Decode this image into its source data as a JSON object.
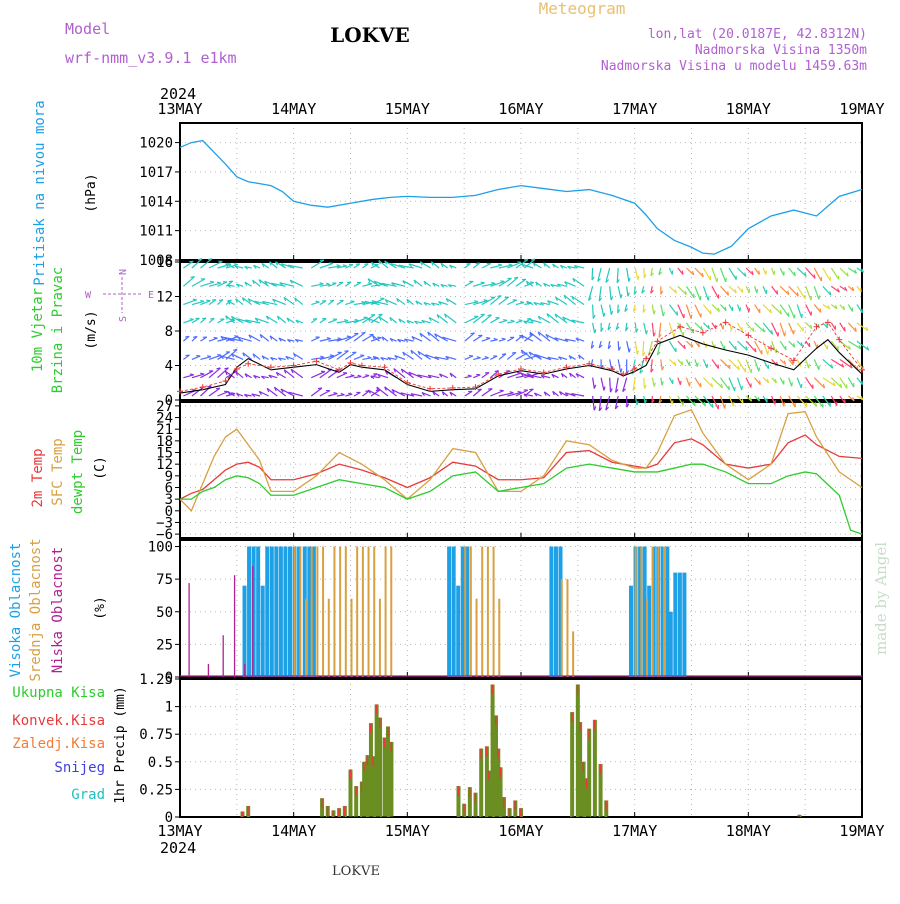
{
  "header": {
    "model_label": "Model",
    "model_name": "wrf-nmm_v3.9.1 e1km",
    "station": "LOKVE",
    "meteogram": "Meteogram",
    "lonlat": "lon,lat (20.0187E, 42.8312N)",
    "elev": "Nadmorska Visina 1350m",
    "elev_model": "Nadmorska Visina u modelu 1459.63m",
    "year_top": "2024",
    "year_bottom": "2024",
    "footer_station": "LOKVE",
    "credit": "made by Angel"
  },
  "colors": {
    "pressure": "#1ea0e6",
    "t2m": "#e83a3a",
    "sfc": "#d8a040",
    "dewpt": "#2ecc2e",
    "high_cloud": "#1ea0e6",
    "mid_cloud": "#d8a040",
    "low_cloud": "#b0208f",
    "precip_total": "#2ecc2e",
    "precip_conv": "#e83a3a",
    "precip_bar": "#6b8e23",
    "wind_speed": "#000000",
    "gust": "#e83a3a"
  },
  "chart_data": [
    {
      "type": "line",
      "panel": "pressure",
      "ylabel": "Pritisak na nivou mora",
      "unit": "(hPa)",
      "x_ticks": [
        "13MAY",
        "14MAY",
        "15MAY",
        "16MAY",
        "17MAY",
        "18MAY",
        "19MAY"
      ],
      "ylim": [
        1008,
        1022
      ],
      "y_ticks": [
        1008,
        1011,
        1014,
        1017,
        1020
      ],
      "series": [
        {
          "x": [
            0,
            0.1,
            0.2,
            0.3,
            0.4,
            0.5,
            0.6,
            0.7,
            0.8,
            0.9,
            1.0,
            1.15,
            1.3,
            1.5,
            1.7,
            1.85,
            2.0,
            2.2,
            2.4,
            2.6,
            2.8,
            3.0,
            3.2,
            3.4,
            3.6,
            3.8,
            4.0,
            4.1,
            4.2,
            4.35,
            4.5,
            4.6,
            4.7,
            4.85,
            5.0,
            5.2,
            5.4,
            5.6,
            5.8,
            6.0
          ],
          "values": [
            1019.5,
            1020,
            1020.2,
            1019,
            1017.8,
            1016.5,
            1016,
            1015.8,
            1015.6,
            1015,
            1014,
            1013.6,
            1013.4,
            1013.8,
            1014.2,
            1014.4,
            1014.5,
            1014.4,
            1014.4,
            1014.6,
            1015.2,
            1015.6,
            1015.3,
            1015.0,
            1015.2,
            1014.6,
            1013.8,
            1012.6,
            1011.2,
            1010.0,
            1009.3,
            1008.7,
            1008.6,
            1009.4,
            1011.2,
            1012.5,
            1013.1,
            1012.5,
            1014.5,
            1015.2
          ]
        }
      ]
    },
    {
      "type": "line",
      "panel": "wind",
      "ylabel": "10m Vjetar Brzina i Pravac",
      "unit": "(m/s)",
      "compass": {
        "n": "N",
        "s": "S",
        "e": "E",
        "w": "W"
      },
      "ylim": [
        0,
        16
      ],
      "y_ticks": [
        0,
        4,
        8,
        12,
        16
      ],
      "series": [
        {
          "name": "speed",
          "x": [
            0,
            0.2,
            0.4,
            0.5,
            0.6,
            0.8,
            1.0,
            1.2,
            1.4,
            1.5,
            1.6,
            1.8,
            2.0,
            2.2,
            2.4,
            2.6,
            2.8,
            3.0,
            3.2,
            3.4,
            3.6,
            3.8,
            3.9,
            4.0,
            4.1,
            4.2,
            4.4,
            4.6,
            4.8,
            5.0,
            5.2,
            5.4,
            5.6,
            5.7,
            5.8,
            6.0
          ],
          "values": [
            0.8,
            1.2,
            1.8,
            3.8,
            4.8,
            3.5,
            3.8,
            4.1,
            3.2,
            4.1,
            3.8,
            3.5,
            1.8,
            1.0,
            1.2,
            1.3,
            2.8,
            3.4,
            3.0,
            3.6,
            4.0,
            3.4,
            2.8,
            3.3,
            4.0,
            6.5,
            7.5,
            6.5,
            5.8,
            5.2,
            4.3,
            3.5,
            6.0,
            7.0,
            5.5,
            3.0
          ]
        },
        {
          "name": "gust",
          "x": [
            0,
            0.2,
            0.4,
            0.5,
            0.6,
            0.8,
            1.0,
            1.2,
            1.4,
            1.5,
            1.6,
            1.8,
            2.0,
            2.2,
            2.4,
            2.6,
            2.8,
            3.0,
            3.2,
            3.4,
            3.6,
            3.8,
            3.9,
            4.0,
            4.1,
            4.2,
            4.4,
            4.6,
            4.8,
            5.0,
            5.2,
            5.4,
            5.6,
            5.7,
            5.8,
            6.0
          ],
          "values": [
            1.0,
            1.5,
            2.2,
            3.6,
            4.2,
            3.8,
            4.0,
            4.5,
            3.5,
            4.3,
            4.0,
            3.8,
            2.0,
            1.3,
            1.4,
            1.5,
            3.0,
            3.6,
            3.2,
            3.8,
            4.2,
            3.6,
            3.0,
            3.6,
            4.8,
            6.8,
            8.5,
            7.8,
            9.0,
            7.5,
            6.0,
            4.6,
            8.5,
            9.0,
            7.0,
            3.5
          ]
        }
      ]
    },
    {
      "type": "line",
      "panel": "temperature",
      "ylabel": "2m Temp / SFC Temp / dewpt Temp",
      "unit": "(C)",
      "ylim": [
        -7,
        28
      ],
      "y_ticks": [
        -6,
        -3,
        0,
        3,
        6,
        9,
        12,
        15,
        18,
        21,
        24,
        27
      ],
      "series": [
        {
          "name": "2m Temp",
          "x": [
            0,
            0.1,
            0.2,
            0.3,
            0.4,
            0.5,
            0.6,
            0.7,
            0.8,
            1.0,
            1.2,
            1.4,
            1.6,
            1.8,
            2.0,
            2.2,
            2.4,
            2.6,
            2.8,
            3.0,
            3.2,
            3.4,
            3.6,
            3.8,
            4.0,
            4.1,
            4.2,
            4.35,
            4.5,
            4.6,
            4.8,
            5.0,
            5.2,
            5.35,
            5.5,
            5.6,
            5.8,
            6.0
          ],
          "values": [
            3,
            4.5,
            5.5,
            8,
            10.5,
            12,
            12.5,
            11.2,
            8,
            8,
            9.5,
            12,
            10.5,
            8.5,
            6,
            8.5,
            12.5,
            11.5,
            8,
            8,
            8.5,
            15,
            15.5,
            12.5,
            11.5,
            11,
            12,
            17.5,
            18.5,
            17,
            12,
            11,
            12,
            17.5,
            19.5,
            17,
            14,
            13.5
          ]
        },
        {
          "name": "SFC Temp",
          "x": [
            0,
            0.1,
            0.2,
            0.3,
            0.4,
            0.5,
            0.6,
            0.7,
            0.8,
            1.0,
            1.2,
            1.4,
            1.6,
            1.8,
            2.0,
            2.2,
            2.4,
            2.6,
            2.8,
            3.0,
            3.2,
            3.4,
            3.6,
            3.8,
            4.0,
            4.1,
            4.2,
            4.35,
            4.5,
            4.6,
            4.8,
            5.0,
            5.2,
            5.35,
            5.5,
            5.6,
            5.8,
            6.0
          ],
          "values": [
            3,
            0,
            7,
            14,
            19,
            21,
            17,
            13,
            5,
            5,
            9,
            15,
            12,
            8,
            3,
            8,
            16,
            15,
            5,
            5,
            9,
            18,
            17,
            13,
            11,
            11,
            15,
            24.5,
            26,
            20,
            12,
            8,
            12,
            25,
            25.5,
            19,
            10,
            6
          ]
        },
        {
          "name": "dewpt Temp",
          "x": [
            0,
            0.1,
            0.2,
            0.3,
            0.4,
            0.5,
            0.6,
            0.7,
            0.8,
            1.0,
            1.2,
            1.4,
            1.6,
            1.8,
            2.0,
            2.2,
            2.4,
            2.6,
            2.8,
            3.0,
            3.2,
            3.4,
            3.6,
            3.8,
            4.0,
            4.1,
            4.2,
            4.35,
            4.5,
            4.6,
            4.8,
            5.0,
            5.2,
            5.35,
            5.5,
            5.6,
            5.8,
            5.9,
            6.0
          ],
          "values": [
            3,
            3,
            5,
            6,
            8,
            9,
            8.5,
            7,
            4,
            4,
            6,
            8,
            7,
            6,
            3,
            5,
            9,
            10,
            5,
            6,
            7,
            11,
            12,
            11,
            10,
            10,
            10,
            11,
            12,
            12,
            10,
            7,
            7,
            9,
            10,
            9.5,
            4,
            -5,
            -6
          ]
        }
      ]
    },
    {
      "type": "bar",
      "panel": "clouds",
      "ylabel": "Visoka Oblacnost / Srednja Oblacnost / Niska Oblacnost",
      "unit": "(%)",
      "ylim": [
        0,
        105
      ],
      "y_ticks": [
        0,
        25,
        50,
        75,
        100
      ],
      "series": [
        {
          "name": "Visoka Oblacnost",
          "segments": [
            [
              0.55,
              1.05,
              100
            ],
            [
              1.08,
              1.2,
              100
            ],
            [
              2.35,
              2.55,
              100
            ],
            [
              3.25,
              3.35,
              100
            ],
            [
              3.95,
              4.3,
              100
            ],
            [
              4.3,
              4.45,
              80
            ]
          ]
        },
        {
          "name": "Srednja Oblacnost",
          "segments": [
            [
              1.0,
              1.9,
              100
            ],
            [
              2.5,
              2.8,
              100
            ],
            [
              3.35,
              3.45,
              75
            ],
            [
              4.0,
              4.25,
              100
            ]
          ]
        },
        {
          "name": "Niska Oblacnost",
          "x": [
            0.08,
            0.25,
            0.38,
            0.48,
            0.57,
            0.64
          ],
          "values": [
            72,
            10,
            32,
            78,
            10,
            85
          ]
        }
      ]
    },
    {
      "type": "bar",
      "panel": "precip",
      "ylabel": "1hr Precip (mm)",
      "legend": [
        "Ukupna Kisa",
        "Konvek.Kisa",
        "Zaledj.Kisa",
        "Snijeg",
        "Grad"
      ],
      "ylim": [
        0,
        1.25
      ],
      "y_ticks": [
        0,
        0.25,
        0.5,
        0.75,
        1,
        1.25
      ],
      "x": [
        0.55,
        0.6,
        1.25,
        1.3,
        1.35,
        1.4,
        1.45,
        1.5,
        1.55,
        1.6,
        1.62,
        1.65,
        1.68,
        1.7,
        1.73,
        1.76,
        1.8,
        1.83,
        1.86,
        2.45,
        2.5,
        2.55,
        2.6,
        2.65,
        2.7,
        2.72,
        2.75,
        2.78,
        2.8,
        2.82,
        2.85,
        2.9,
        2.95,
        3.0,
        3.45,
        3.5,
        3.52,
        3.55,
        3.58,
        3.6,
        3.65,
        3.7,
        3.75,
        5.45
      ],
      "values": [
        0.05,
        0.1,
        0.17,
        0.1,
        0.06,
        0.08,
        0.1,
        0.43,
        0.28,
        0.32,
        0.5,
        0.56,
        0.85,
        0.55,
        1.02,
        0.9,
        0.72,
        0.82,
        0.68,
        0.28,
        0.12,
        0.27,
        0.22,
        0.62,
        0.64,
        0.42,
        1.2,
        0.92,
        0.62,
        0.45,
        0.18,
        0.08,
        0.15,
        0.08,
        0.95,
        1.2,
        0.86,
        0.5,
        0.35,
        0.8,
        0.88,
        0.48,
        0.15,
        0.02
      ]
    }
  ]
}
